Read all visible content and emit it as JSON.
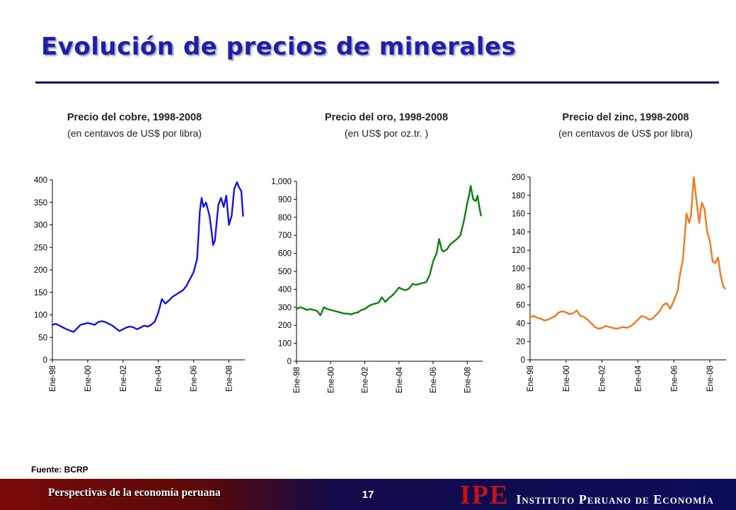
{
  "slide": {
    "title": "Evolución de precios de minerales",
    "source": "Fuente: BCRP",
    "footer_left": "Perspectivas de la economía peruana",
    "page_number": "17",
    "logo_mark": "IPE",
    "logo_text": "Instituto Peruano de Economía"
  },
  "chart_data": [
    {
      "type": "line",
      "title": "Precio del cobre, 1998-2008",
      "subtitle": "(en centavos de US$ por libra)",
      "color": "#1414e0",
      "ylim": [
        0,
        400
      ],
      "yticks": [
        0,
        50,
        100,
        150,
        200,
        250,
        300,
        350,
        400
      ],
      "ytick_labels": [
        "0",
        "50",
        "100",
        "150",
        "200",
        "250",
        "300",
        "350",
        "400"
      ],
      "xlim": [
        1998.0,
        2008.9
      ],
      "xticks": [
        1998,
        2000,
        2002,
        2004,
        2006,
        2008
      ],
      "xtick_labels": [
        "Ene-98",
        "Ene-00",
        "Ene-02",
        "Ene-04",
        "Ene-06",
        "Ene-08"
      ],
      "grid": false,
      "series": [
        {
          "x": [
            1998.0,
            1998.2,
            1998.4,
            1998.6,
            1998.8,
            1999.0,
            1999.2,
            1999.4,
            1999.6,
            1999.8,
            2000.0,
            2000.2,
            2000.4,
            2000.6,
            2000.8,
            2001.0,
            2001.2,
            2001.4,
            2001.6,
            2001.8,
            2002.0,
            2002.2,
            2002.4,
            2002.6,
            2002.8,
            2003.0,
            2003.2,
            2003.4,
            2003.6,
            2003.8,
            2004.0,
            2004.2,
            2004.4,
            2004.6,
            2004.8,
            2005.0,
            2005.2,
            2005.4,
            2005.6,
            2005.8,
            2006.0,
            2006.2,
            2006.35,
            2006.45,
            2006.55,
            2006.7,
            2006.9,
            2007.0,
            2007.1,
            2007.2,
            2007.4,
            2007.55,
            2007.7,
            2007.85,
            2008.0,
            2008.15,
            2008.3,
            2008.45,
            2008.55,
            2008.7,
            2008.8
          ],
          "y": [
            78,
            80,
            76,
            72,
            68,
            65,
            62,
            70,
            78,
            80,
            82,
            80,
            78,
            84,
            86,
            84,
            80,
            76,
            70,
            64,
            68,
            72,
            74,
            72,
            68,
            72,
            76,
            74,
            78,
            85,
            105,
            135,
            125,
            132,
            140,
            145,
            150,
            155,
            165,
            180,
            195,
            225,
            330,
            360,
            340,
            350,
            320,
            290,
            255,
            265,
            345,
            360,
            340,
            365,
            300,
            320,
            380,
            395,
            385,
            375,
            320
          ]
        }
      ]
    },
    {
      "type": "line",
      "title": "Precio del oro, 1998-2008",
      "subtitle": "(en US$ por oz.tr. )",
      "color": "#0c800c",
      "ylim": [
        0,
        1000
      ],
      "yticks": [
        0,
        100,
        200,
        300,
        400,
        500,
        600,
        700,
        800,
        900,
        1000
      ],
      "ytick_labels": [
        "0",
        "100",
        "200",
        "300",
        "400",
        "500",
        "600",
        "700",
        "800",
        "900",
        "1,000"
      ],
      "xlim": [
        1998.0,
        2008.9
      ],
      "xticks": [
        1998,
        2000,
        2002,
        2004,
        2006,
        2008
      ],
      "xtick_labels": [
        "Ene-98",
        "Ene-00",
        "Ene-02",
        "Ene-04",
        "Ene-06",
        "Ene-08"
      ],
      "grid": false,
      "series": [
        {
          "x": [
            1998.0,
            1998.2,
            1998.4,
            1998.6,
            1998.8,
            1999.0,
            1999.2,
            1999.4,
            1999.6,
            1999.8,
            2000.0,
            2000.2,
            2000.4,
            2000.6,
            2000.8,
            2001.0,
            2001.2,
            2001.4,
            2001.6,
            2001.8,
            2002.0,
            2002.2,
            2002.4,
            2002.6,
            2002.8,
            2003.0,
            2003.2,
            2003.4,
            2003.6,
            2003.8,
            2004.0,
            2004.2,
            2004.4,
            2004.6,
            2004.8,
            2005.0,
            2005.2,
            2005.4,
            2005.6,
            2005.8,
            2006.0,
            2006.2,
            2006.35,
            2006.5,
            2006.6,
            2006.8,
            2007.0,
            2007.2,
            2007.4,
            2007.6,
            2007.8,
            2008.0,
            2008.1,
            2008.2,
            2008.35,
            2008.5,
            2008.6,
            2008.7,
            2008.8
          ],
          "y": [
            290,
            300,
            295,
            285,
            290,
            285,
            280,
            255,
            300,
            290,
            285,
            280,
            275,
            270,
            265,
            265,
            260,
            268,
            272,
            285,
            290,
            305,
            315,
            320,
            325,
            355,
            330,
            350,
            365,
            385,
            410,
            400,
            395,
            405,
            430,
            425,
            430,
            435,
            440,
            480,
            555,
            600,
            680,
            620,
            610,
            620,
            650,
            665,
            680,
            700,
            780,
            880,
            920,
            975,
            900,
            890,
            920,
            860,
            810
          ]
        }
      ]
    },
    {
      "type": "line",
      "title": "Precio del zinc, 1998-2008",
      "subtitle": "(en centavos de US$ por libra)",
      "color": "#f07820",
      "ylim": [
        0,
        200
      ],
      "yticks": [
        0,
        20,
        40,
        60,
        80,
        100,
        120,
        140,
        160,
        180,
        200
      ],
      "ytick_labels": [
        "0",
        "20",
        "40",
        "60",
        "80",
        "100",
        "120",
        "140",
        "160",
        "180",
        "200"
      ],
      "xlim": [
        1998.0,
        2008.9
      ],
      "xticks": [
        1998,
        2000,
        2002,
        2004,
        2006,
        2008
      ],
      "xtick_labels": [
        "Ene-98",
        "Ene-00",
        "Ene-02",
        "Ene-04",
        "Ene-06",
        "Ene-08"
      ],
      "grid": false,
      "series": [
        {
          "x": [
            1998.0,
            1998.2,
            1998.4,
            1998.6,
            1998.8,
            1999.0,
            1999.2,
            1999.4,
            1999.6,
            1999.8,
            2000.0,
            2000.2,
            2000.4,
            2000.6,
            2000.8,
            2001.0,
            2001.2,
            2001.4,
            2001.6,
            2001.8,
            2002.0,
            2002.2,
            2002.4,
            2002.6,
            2002.8,
            2003.0,
            2003.2,
            2003.4,
            2003.6,
            2003.8,
            2004.0,
            2004.2,
            2004.4,
            2004.6,
            2004.8,
            2005.0,
            2005.2,
            2005.4,
            2005.6,
            2005.8,
            2006.0,
            2006.2,
            2006.35,
            2006.5,
            2006.7,
            2006.85,
            2006.95,
            2007.1,
            2007.25,
            2007.4,
            2007.55,
            2007.7,
            2007.85,
            2008.0,
            2008.15,
            2008.3,
            2008.45,
            2008.6,
            2008.75,
            2008.85
          ],
          "y": [
            47,
            48,
            46,
            45,
            43,
            44,
            46,
            48,
            52,
            53,
            52,
            50,
            51,
            54,
            48,
            47,
            44,
            40,
            36,
            34,
            35,
            37,
            36,
            35,
            34,
            35,
            36,
            35,
            37,
            40,
            44,
            48,
            47,
            44,
            45,
            49,
            53,
            60,
            62,
            56,
            65,
            75,
            95,
            110,
            160,
            150,
            158,
            200,
            175,
            150,
            172,
            165,
            140,
            130,
            108,
            106,
            112,
            92,
            80,
            78
          ]
        }
      ]
    }
  ]
}
